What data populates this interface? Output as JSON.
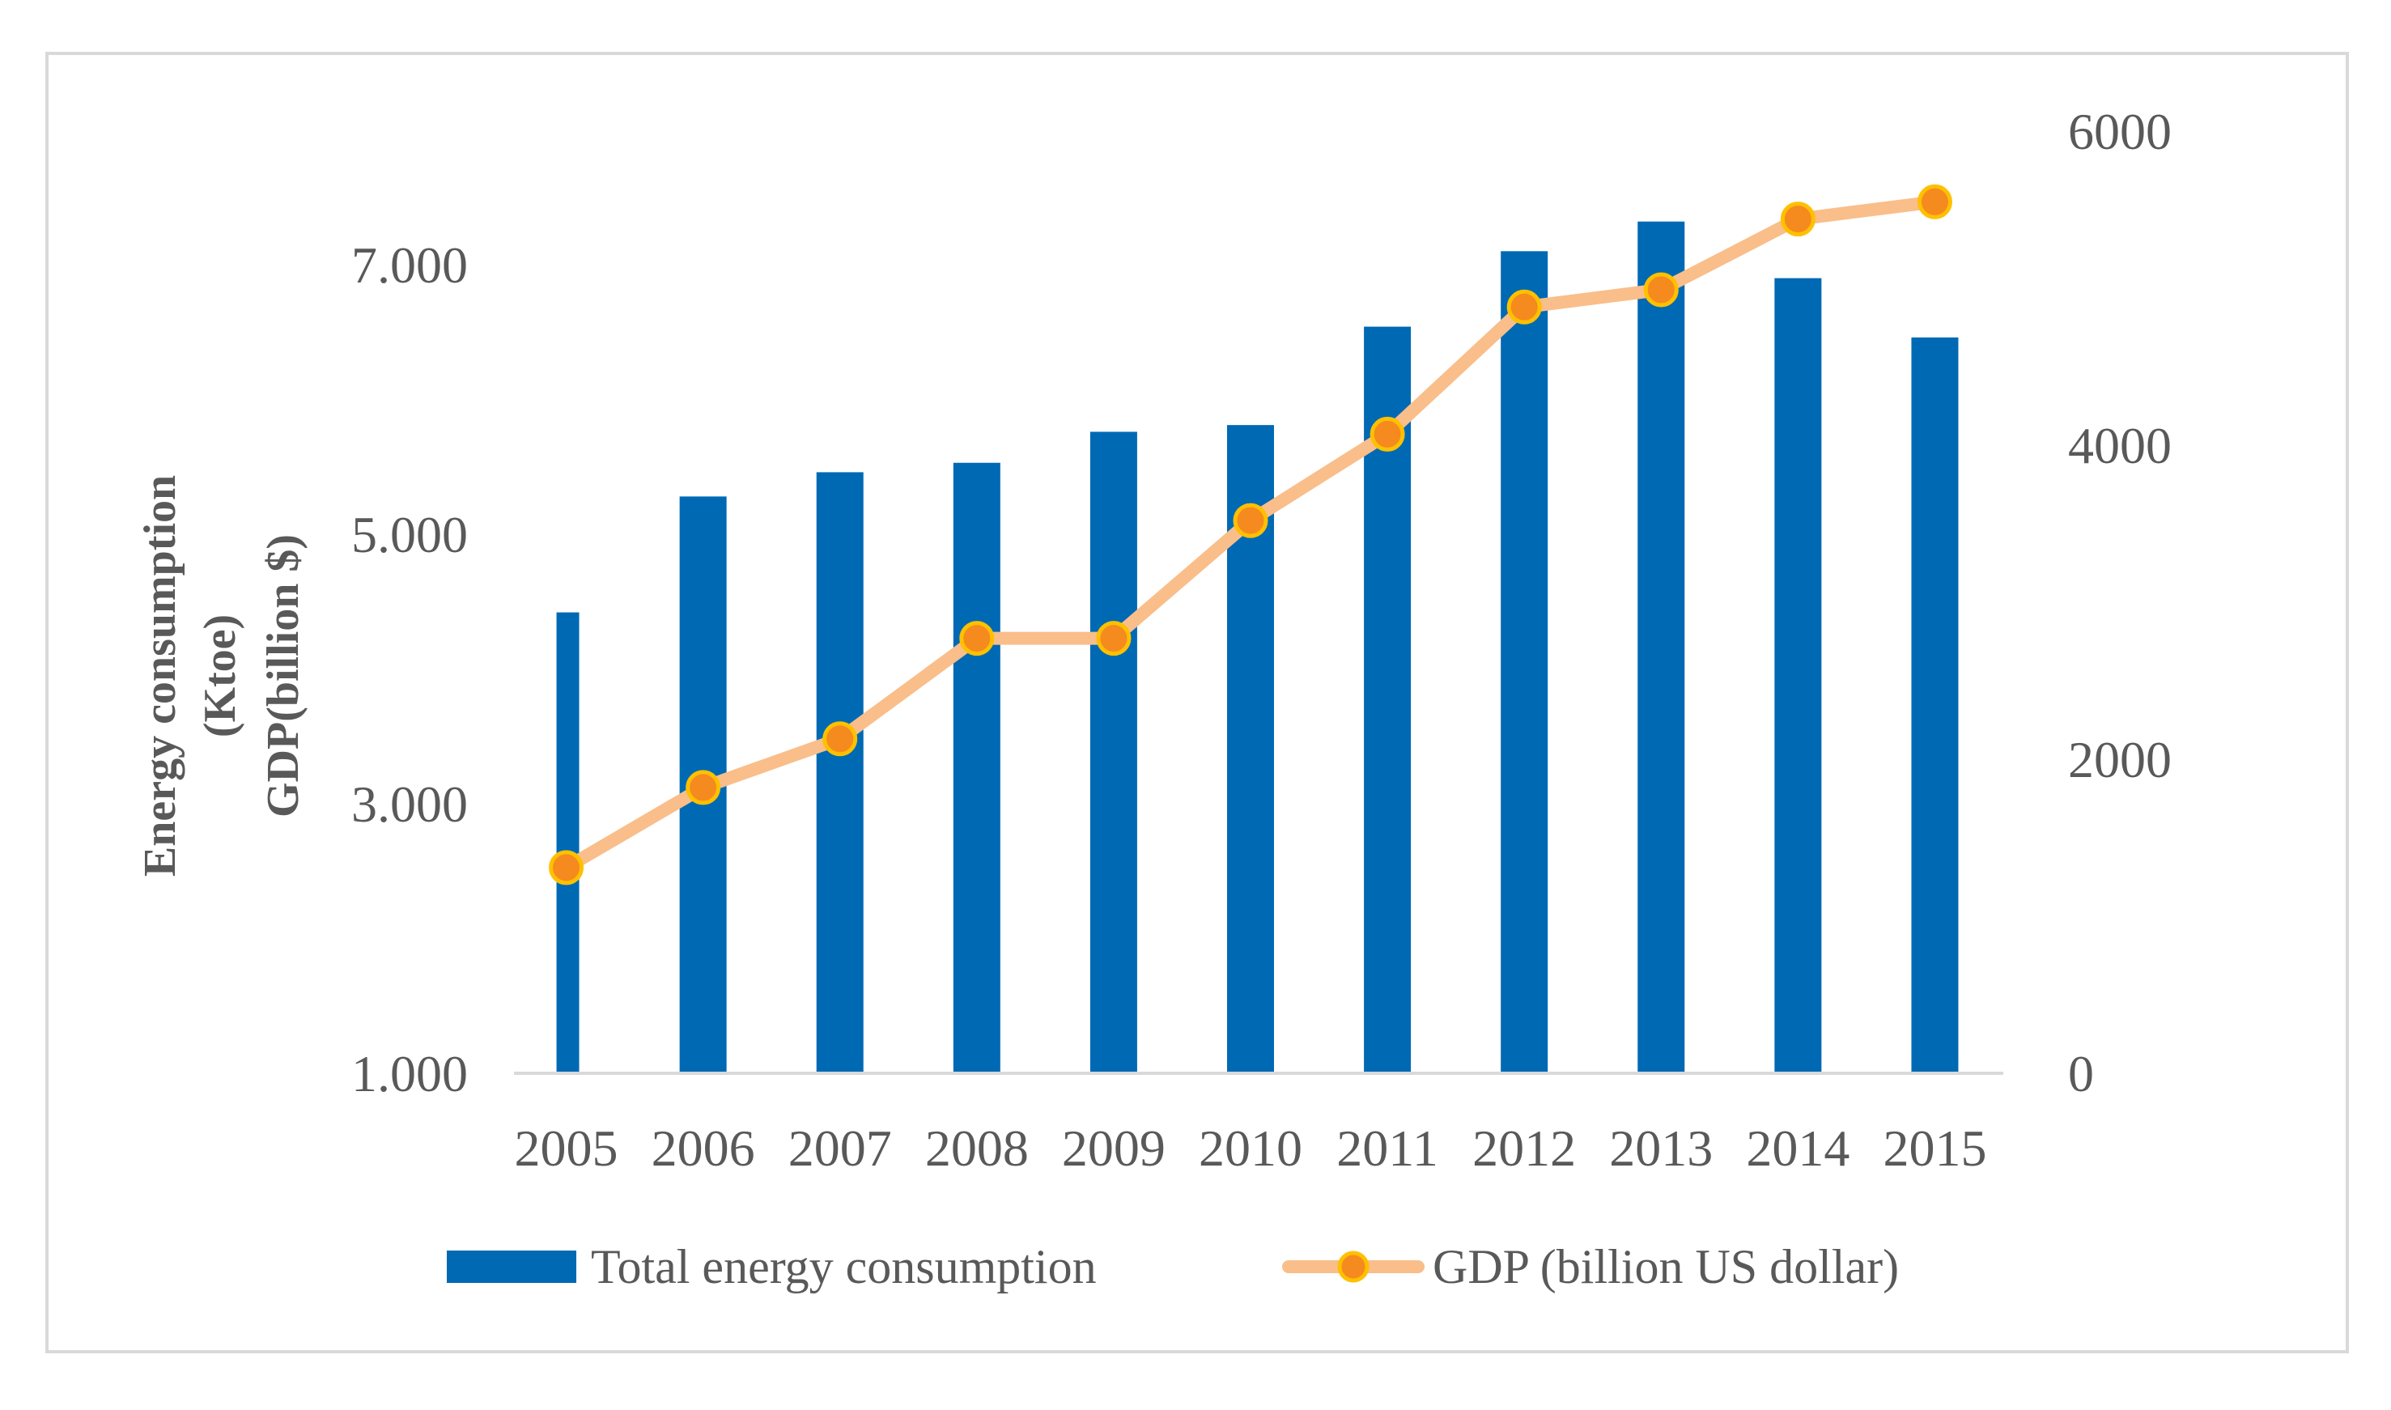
{
  "chart_data": {
    "type": "bar+line",
    "categories": [
      "2005",
      "2006",
      "2007",
      "2008",
      "2009",
      "2010",
      "2011",
      "2012",
      "2013",
      "2014",
      "2015"
    ],
    "series": [
      {
        "name": "Total energy consumption",
        "type": "bar",
        "axis": "left",
        "color": "#0069b4",
        "values": [
          4420,
          5280,
          5460,
          5530,
          5760,
          5810,
          6540,
          7100,
          7320,
          6900,
          6460
        ]
      },
      {
        "name": "GDP (billion US dollar)",
        "type": "line",
        "axis": "right",
        "color": "#f9be8a",
        "marker_color": "#f58a1f",
        "marker_edge": "#ffc000",
        "values": [
          1310,
          1820,
          2130,
          2770,
          2770,
          3520,
          4070,
          4880,
          4990,
          5440,
          5550
        ]
      }
    ],
    "left_axis": {
      "label_lines": [
        "Energy consumption",
        "(Ktoe)",
        "GDP(billion $)"
      ],
      "ylim": [
        1000,
        8000
      ],
      "ticks": [
        1000,
        3000,
        5000,
        7000
      ],
      "tick_labels": [
        "1.000",
        "3.000",
        "5.000",
        "7.000"
      ]
    },
    "right_axis": {
      "ylim": [
        0,
        6000
      ],
      "ticks": [
        0,
        2000,
        4000,
        6000
      ],
      "tick_labels": [
        "0",
        "2000",
        "4000",
        "6000"
      ]
    },
    "legend": {
      "position": "bottom",
      "items": [
        "Total energy consumption",
        "GDP (billion US dollar)"
      ]
    },
    "grid": false
  }
}
